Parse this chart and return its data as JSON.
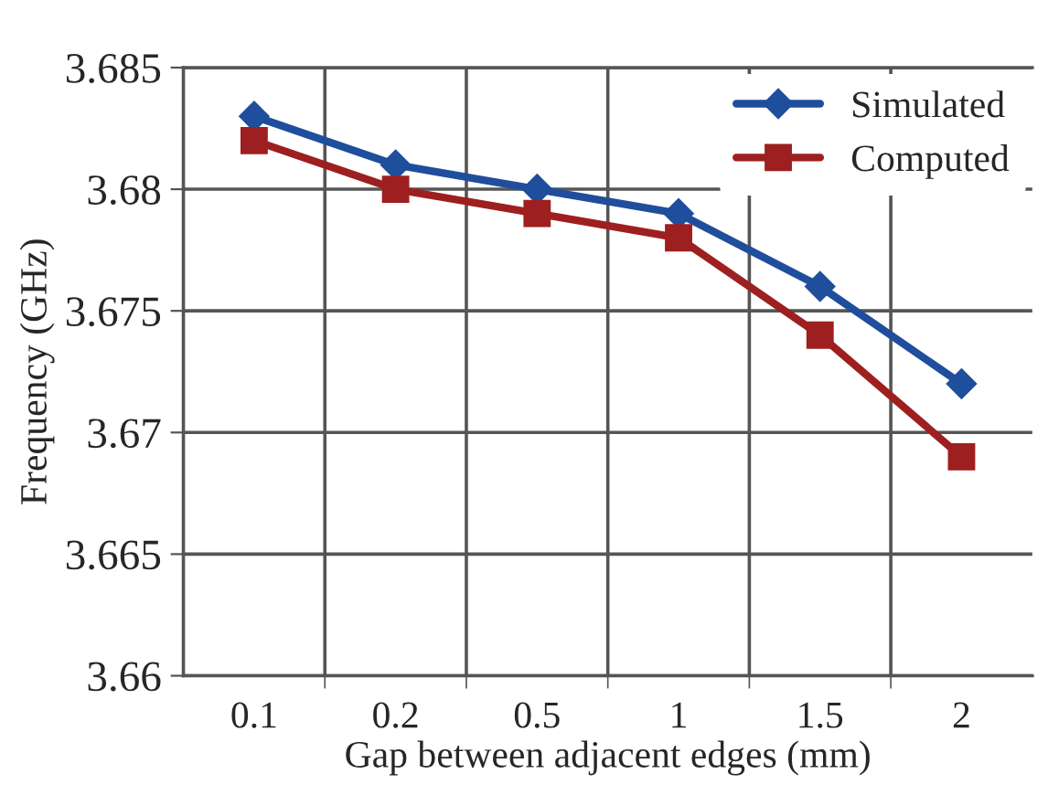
{
  "chart_data": {
    "type": "line",
    "xlabel": "Gap between adjacent edges (mm)",
    "ylabel": "Frequency (GHz)",
    "categories": [
      "0.1",
      "0.2",
      "0.5",
      "1",
      "1.5",
      "2"
    ],
    "series": [
      {
        "name": "Simulated",
        "color": "#1f4e9c",
        "marker": "diamond",
        "values": [
          3.683,
          3.681,
          3.68,
          3.679,
          3.676,
          3.672
        ]
      },
      {
        "name": "Computed",
        "color": "#9e1f1f",
        "marker": "square",
        "values": [
          3.682,
          3.68,
          3.679,
          3.678,
          3.674,
          3.669
        ]
      }
    ],
    "ylim": [
      3.66,
      3.685
    ],
    "yticks": [
      3.66,
      3.665,
      3.67,
      3.675,
      3.68,
      3.685
    ],
    "grid": true,
    "legend": "top right",
    "line_style": "solid"
  }
}
